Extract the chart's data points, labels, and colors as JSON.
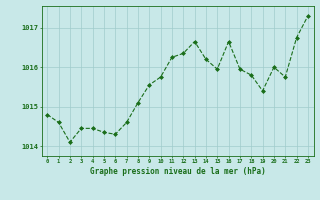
{
  "x": [
    0,
    1,
    2,
    3,
    4,
    5,
    6,
    7,
    8,
    9,
    10,
    11,
    12,
    13,
    14,
    15,
    16,
    17,
    18,
    19,
    20,
    21,
    22,
    23
  ],
  "y": [
    1014.8,
    1014.6,
    1014.1,
    1014.45,
    1014.45,
    1014.35,
    1014.3,
    1014.6,
    1015.1,
    1015.55,
    1015.75,
    1016.25,
    1016.35,
    1016.65,
    1016.2,
    1015.95,
    1016.65,
    1015.95,
    1015.8,
    1015.4,
    1016.0,
    1015.75,
    1016.75,
    1017.3
  ],
  "line_color": "#1a6e1a",
  "marker_color": "#1a6e1a",
  "bg_color": "#c8e8e8",
  "grid_color": "#a0cccc",
  "xlabel": "Graphe pression niveau de la mer (hPa)",
  "xlabel_color": "#1a6e1a",
  "tick_color": "#1a6e1a",
  "ylim": [
    1013.75,
    1017.55
  ],
  "yticks": [
    1014,
    1015,
    1016,
    1017
  ],
  "xlim": [
    -0.5,
    23.5
  ],
  "xticks": [
    0,
    1,
    2,
    3,
    4,
    5,
    6,
    7,
    8,
    9,
    10,
    11,
    12,
    13,
    14,
    15,
    16,
    17,
    18,
    19,
    20,
    21,
    22,
    23
  ]
}
